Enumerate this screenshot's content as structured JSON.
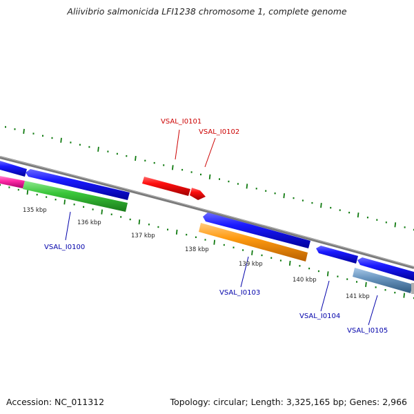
{
  "title": "Aliivibrio salmonicida LFI1238 chromosome 1, complete genome",
  "footer": {
    "accession": "Accession: NC_011312",
    "topology": "Topology: circular; Length: 3,325,165 bp; Genes: 2,966"
  },
  "colors": {
    "backbone": "#888888",
    "tick": "#0f7a0f",
    "forward_label": "#cc0000",
    "reverse_label": "#0000aa"
  },
  "scale_labels": [
    "135 kbp",
    "136 kbp",
    "137 kbp",
    "138 kbp",
    "139 kbp",
    "140 kbp",
    "141 kbp"
  ],
  "gene_labels": [
    {
      "text": "VSAL_I0100",
      "strand": "reverse"
    },
    {
      "text": "VSAL_I0101",
      "strand": "forward"
    },
    {
      "text": "VSAL_I0102",
      "strand": "forward"
    },
    {
      "text": "VSAL_I0103",
      "strand": "reverse"
    },
    {
      "text": "VSAL_I0104",
      "strand": "reverse"
    },
    {
      "text": "VSAL_I0105",
      "strand": "reverse"
    }
  ]
}
